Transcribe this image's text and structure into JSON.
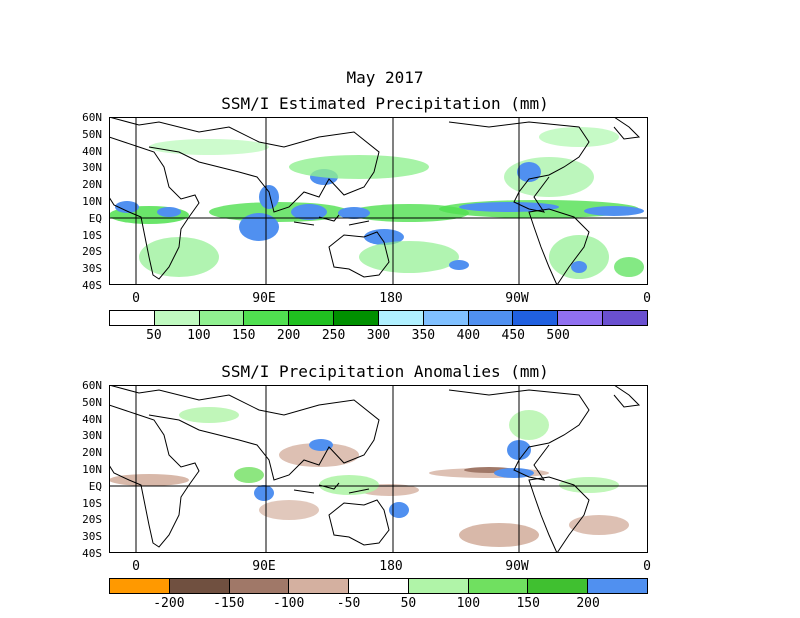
{
  "title": "May 2017",
  "panel1": {
    "title": "SSM/I Estimated Precipitation (mm)",
    "lat_labels": [
      "60N",
      "50N",
      "40N",
      "30N",
      "20N",
      "10N",
      "EQ",
      "10S",
      "20S",
      "30S",
      "40S"
    ],
    "lon_labels": [
      "0",
      "90E",
      "180",
      "90W",
      "0"
    ],
    "colorbar": {
      "colors": [
        "#ffffff",
        "#c0fac0",
        "#90f090",
        "#50e050",
        "#20c020",
        "#009000",
        "#b0f0ff",
        "#80c0ff",
        "#5090f0",
        "#2060e0",
        "#9070f0",
        "#6a50d0"
      ],
      "labels": [
        "50",
        "100",
        "150",
        "200",
        "250",
        "300",
        "350",
        "400",
        "450",
        "500"
      ]
    }
  },
  "panel2": {
    "title": "SSM/I Precipitation Anomalies (mm)",
    "lat_labels": [
      "60N",
      "50N",
      "40N",
      "30N",
      "20N",
      "10N",
      "EQ",
      "10S",
      "20S",
      "30S",
      "40S"
    ],
    "lon_labels": [
      "0",
      "90E",
      "180",
      "90W",
      "0"
    ],
    "colorbar": {
      "colors": [
        "#ff9900",
        "#705040",
        "#a07868",
        "#d4b0a0",
        "#ffffff",
        "#b0f4a8",
        "#70e060",
        "#40c030",
        "#5090f0"
      ],
      "labels": [
        "-200",
        "-150",
        "-100",
        "-50",
        "50",
        "100",
        "150",
        "200"
      ]
    }
  }
}
